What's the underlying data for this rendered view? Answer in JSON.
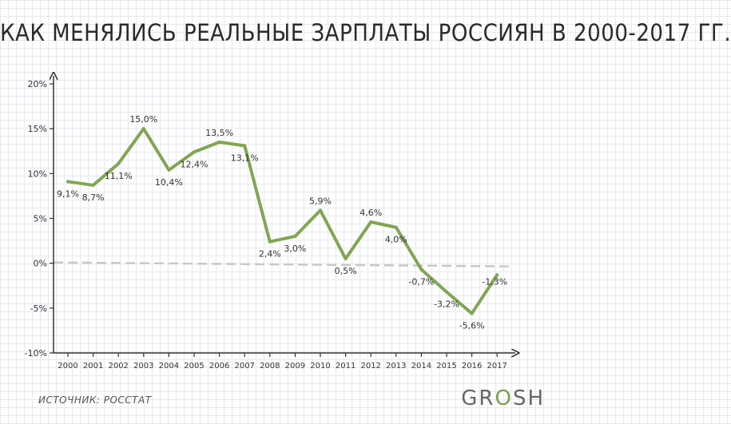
{
  "chart_data": {
    "type": "line",
    "title": "КАК МЕНЯЛИСЬ РЕАЛЬНЫЕ ЗАРПЛАТЫ РОССИЯН В 2000-2017 ГГ.",
    "x": [
      "2000",
      "2001",
      "2002",
      "2003",
      "2004",
      "2005",
      "2006",
      "2007",
      "2008",
      "2009",
      "2010",
      "2011",
      "2012",
      "2013",
      "2014",
      "2015",
      "2016",
      "2017"
    ],
    "series": [
      {
        "values": [
          9.1,
          8.7,
          11.1,
          15.0,
          10.4,
          12.4,
          13.5,
          13.1,
          2.4,
          3.0,
          5.9,
          0.5,
          4.6,
          4.0,
          -0.7,
          -3.2,
          -5.6,
          -1.3
        ],
        "labels": [
          "9,1%",
          "8,7%",
          "11,1%",
          "15,0%",
          "10,4%",
          "12,4%",
          "13,5%",
          "13,1%",
          "2,4%",
          "3,0%",
          "5,9%",
          "0,5%",
          "4,6%",
          "4,0%",
          "-0,7%",
          "-3,2%",
          "-5,6%",
          "-1,3%"
        ],
        "color": "#82a653"
      }
    ],
    "yticks": [
      20,
      15,
      10,
      5,
      0,
      -5,
      -10
    ],
    "ytick_labels": [
      "20%",
      "15%",
      "10%",
      "5%",
      "0%",
      "-5%",
      "-10%"
    ],
    "ylim": [
      -10,
      20
    ],
    "grid": true,
    "zero_line_color": "#c8c8c8"
  },
  "source": "ИСТОЧНИК: РОССТАТ",
  "brand": {
    "pre": "GR",
    "o": "O",
    "post": "SH",
    "o_color": "#7aa04a"
  }
}
